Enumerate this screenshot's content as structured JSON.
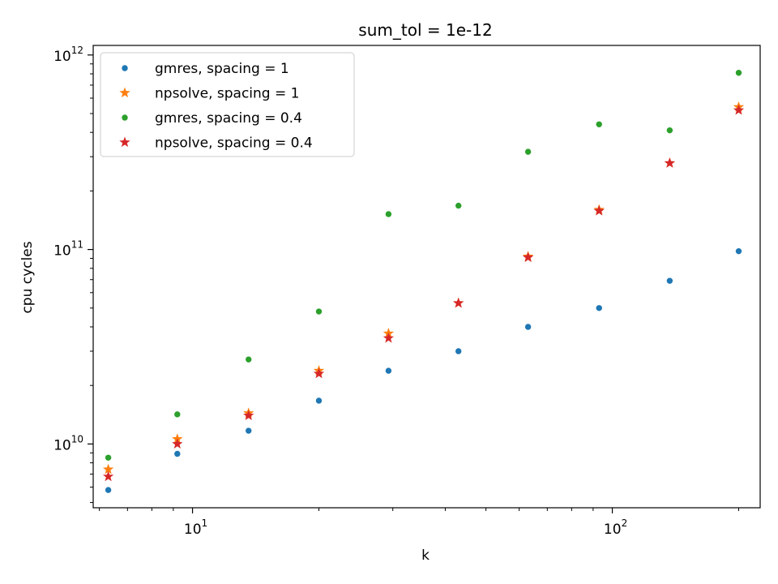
{
  "chart_data": {
    "type": "scatter",
    "title": "sum_tol = 1e-12",
    "xlabel": "k",
    "ylabel": "cpu cycles",
    "xscale": "log",
    "yscale": "log",
    "xlim": [
      5.8,
      225
    ],
    "ylim": [
      4700000000.0,
      1120000000000.0
    ],
    "x_ticks": [
      {
        "value": 10,
        "base": "10",
        "exp": "1"
      },
      {
        "value": 100,
        "base": "10",
        "exp": "2"
      }
    ],
    "y_ticks": [
      {
        "value": 10000000000.0,
        "base": "10",
        "exp": "10"
      },
      {
        "value": 100000000000.0,
        "base": "10",
        "exp": "11"
      },
      {
        "value": 1000000000000.0,
        "base": "10",
        "exp": "12"
      }
    ],
    "grid": false,
    "legend_position": "top-left",
    "x": [
      6.3,
      9.2,
      13.6,
      20,
      29.3,
      43,
      63,
      93,
      137,
      200
    ],
    "series": [
      {
        "name": "gmres, spacing = 1",
        "marker": "dot",
        "color": "#1f77b4",
        "values": [
          5800000000.0,
          8900000000.0,
          11700000000.0,
          16700000000.0,
          23800000000.0,
          30000000000.0,
          40000000000.0,
          50000000000.0,
          69000000000.0,
          98000000000.0
        ]
      },
      {
        "name": "npsolve, spacing = 1",
        "marker": "star",
        "color": "#ff7f0e",
        "values": [
          7400000000.0,
          10600000000.0,
          14400000000.0,
          23800000000.0,
          37000000000.0,
          53000000000.0,
          92000000000.0,
          160000000000.0,
          278000000000.0,
          540000000000.0
        ]
      },
      {
        "name": "gmres, spacing = 0.4",
        "marker": "dot",
        "color": "#2ca02c",
        "values": [
          8500000000.0,
          14200000000.0,
          27200000000.0,
          48000000000.0,
          152000000000.0,
          168000000000.0,
          318000000000.0,
          440000000000.0,
          410000000000.0,
          810000000000.0
        ]
      },
      {
        "name": "npsolve, spacing = 0.4",
        "marker": "star",
        "color": "#d62728",
        "values": [
          6800000000.0,
          10000000000.0,
          14000000000.0,
          23000000000.0,
          35000000000.0,
          53000000000.0,
          91000000000.0,
          158000000000.0,
          278000000000.0,
          520000000000.0
        ]
      }
    ]
  }
}
